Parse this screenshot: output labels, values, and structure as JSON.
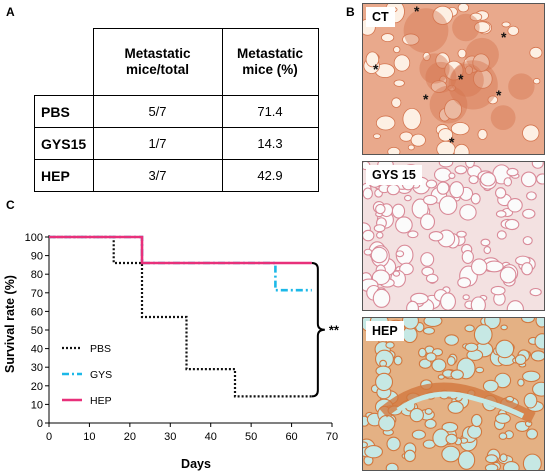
{
  "panels": {
    "a": "A",
    "b": "B",
    "c": "C"
  },
  "table": {
    "headers": [
      "Metastatic mice/total",
      "Metastatic mice (%)"
    ],
    "header_lines": [
      [
        "Metastatic",
        "mice/total"
      ],
      [
        "Metastatic",
        "mice (%)"
      ]
    ],
    "rows": [
      {
        "label": "PBS",
        "ratio": "5/7",
        "percent": "71.4"
      },
      {
        "label": "GYS15",
        "ratio": "1/7",
        "percent": "14.3"
      },
      {
        "label": "HEP",
        "ratio": "3/7",
        "percent": "42.9"
      }
    ]
  },
  "histology": [
    {
      "label": "CT",
      "colors": {
        "bg": "#e9a98c",
        "tissue": "#d4754f",
        "lumen": "#fdf0e4"
      },
      "asterisks": "*"
    },
    {
      "label": "GYS 15",
      "colors": {
        "bg": "#f3e1e1",
        "tissue": "#d98a98",
        "lumen": "#fbfbfb"
      }
    },
    {
      "label": "HEP",
      "colors": {
        "bg": "#e4b184",
        "tissue": "#d2783f",
        "lumen": "#c6e8e4"
      }
    }
  ],
  "chart_data": {
    "type": "line",
    "step": true,
    "xlabel": "Days",
    "ylabel": "Survival rate (%)",
    "xlim": [
      0,
      70
    ],
    "ylim": [
      0,
      100
    ],
    "xticks": [
      0,
      10,
      20,
      30,
      40,
      50,
      60,
      70
    ],
    "yticks": [
      0,
      10,
      20,
      30,
      40,
      50,
      60,
      70,
      80,
      90,
      100
    ],
    "series": [
      {
        "name": "PBS",
        "color": "#111111",
        "dash": "dotted",
        "x": [
          0,
          16,
          16,
          23,
          23,
          34,
          34,
          46,
          46,
          65
        ],
        "y": [
          100,
          100,
          86,
          86,
          57,
          57,
          29,
          29,
          14.3,
          14.3
        ]
      },
      {
        "name": "GYS",
        "color": "#1cb8e8",
        "dash": "dashdot",
        "x": [
          0,
          23,
          23,
          56,
          56,
          65
        ],
        "y": [
          100,
          100,
          86,
          86,
          71.4,
          71.4
        ]
      },
      {
        "name": "HEP",
        "color": "#e8307a",
        "dash": "solid",
        "x": [
          0,
          23,
          23,
          65
        ],
        "y": [
          100,
          100,
          86,
          86
        ]
      }
    ],
    "annotation": "**"
  }
}
